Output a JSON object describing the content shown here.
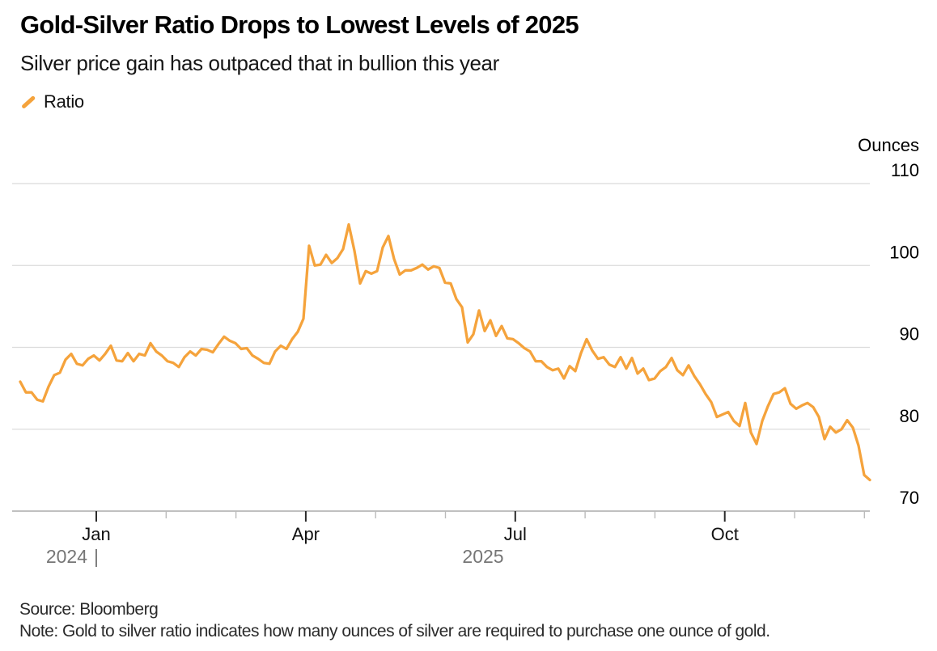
{
  "header": {
    "title": "Gold-Silver Ratio Drops to Lowest Levels of 2025",
    "subtitle": "Silver price gain has outpaced that in bullion this year"
  },
  "legend": {
    "items": [
      {
        "label": "Ratio",
        "color": "#F5A33C",
        "marker": "diagonal-line"
      }
    ]
  },
  "colors": {
    "line": "#F5A33C",
    "gridline": "#DBDBDB",
    "axis_line": "#ABABAB",
    "tick_major": "#2A2A2A",
    "tick_minor": "#BBBBBB",
    "month_label": "#111111",
    "year_label": "#767676",
    "axis_text": "#000000"
  },
  "chart_data": {
    "type": "line",
    "title": "Gold-Silver Ratio Drops to Lowest Levels of 2025",
    "subtitle": "Silver price gain has outpaced that in bullion this year",
    "y_axis": {
      "label": "Ounces",
      "side": "right",
      "ticks": [
        110,
        100,
        90,
        80,
        70
      ],
      "range": [
        70,
        110
      ],
      "gridlines": true
    },
    "x_axis": {
      "range": [
        "2024-11-28",
        "2025-12-01"
      ],
      "major_ticks": [
        {
          "label": "Jan",
          "pos": 0
        },
        {
          "label": "Apr",
          "pos": 3
        },
        {
          "label": "Jul",
          "pos": 6
        },
        {
          "label": "Oct",
          "pos": 9
        }
      ],
      "minor_tick_positions": [
        1,
        2,
        4,
        5,
        7,
        8,
        10,
        11
      ],
      "year_left": "2024",
      "year_divider": "|",
      "year_right": "2025"
    },
    "series": [
      {
        "name": "Ratio",
        "color": "#F5A33C",
        "values": [
          85.8,
          84.5,
          84.5,
          83.6,
          83.4,
          85.2,
          86.6,
          86.9,
          88.5,
          89.2,
          88.0,
          87.8,
          88.6,
          89.0,
          88.4,
          89.2,
          90.2,
          88.4,
          88.3,
          89.3,
          88.3,
          89.2,
          89.0,
          90.5,
          89.5,
          89.0,
          88.3,
          88.1,
          87.6,
          88.8,
          89.5,
          89.0,
          89.8,
          89.7,
          89.4,
          90.4,
          91.3,
          90.8,
          90.5,
          89.8,
          89.9,
          89.0,
          88.6,
          88.1,
          88.0,
          89.5,
          90.2,
          89.8,
          91.0,
          91.9,
          93.5,
          102.4,
          100.0,
          100.1,
          101.3,
          100.3,
          100.9,
          102.0,
          105.0,
          101.8,
          97.8,
          99.3,
          99.0,
          99.3,
          102.2,
          103.6,
          100.8,
          98.9,
          99.4,
          99.4,
          99.7,
          100.1,
          99.5,
          99.9,
          99.7,
          97.9,
          97.8,
          95.9,
          94.9,
          90.6,
          91.6,
          94.5,
          92.0,
          93.3,
          91.4,
          92.6,
          91.1,
          91.0,
          90.5,
          89.9,
          89.5,
          88.3,
          88.3,
          87.6,
          87.2,
          87.4,
          86.2,
          87.7,
          87.1,
          89.3,
          91.0,
          89.6,
          88.6,
          88.8,
          87.9,
          87.6,
          88.8,
          87.4,
          88.7,
          86.8,
          87.4,
          86.0,
          86.2,
          87.1,
          87.6,
          88.7,
          87.2,
          86.6,
          87.8,
          86.5,
          85.5,
          84.3,
          83.3,
          81.5,
          81.8,
          82.1,
          81.0,
          80.4,
          83.2,
          79.6,
          78.2,
          81.0,
          82.8,
          84.3,
          84.5,
          85.0,
          83.1,
          82.5,
          82.9,
          83.2,
          82.7,
          81.5,
          78.8,
          80.3,
          79.6,
          80.0,
          81.1,
          80.2,
          78.0,
          74.4,
          73.8
        ]
      }
    ]
  },
  "footer": {
    "source": "Source: Bloomberg",
    "note": "Note: Gold to silver ratio indicates how many ounces of silver are required to purchase one ounce of gold."
  }
}
